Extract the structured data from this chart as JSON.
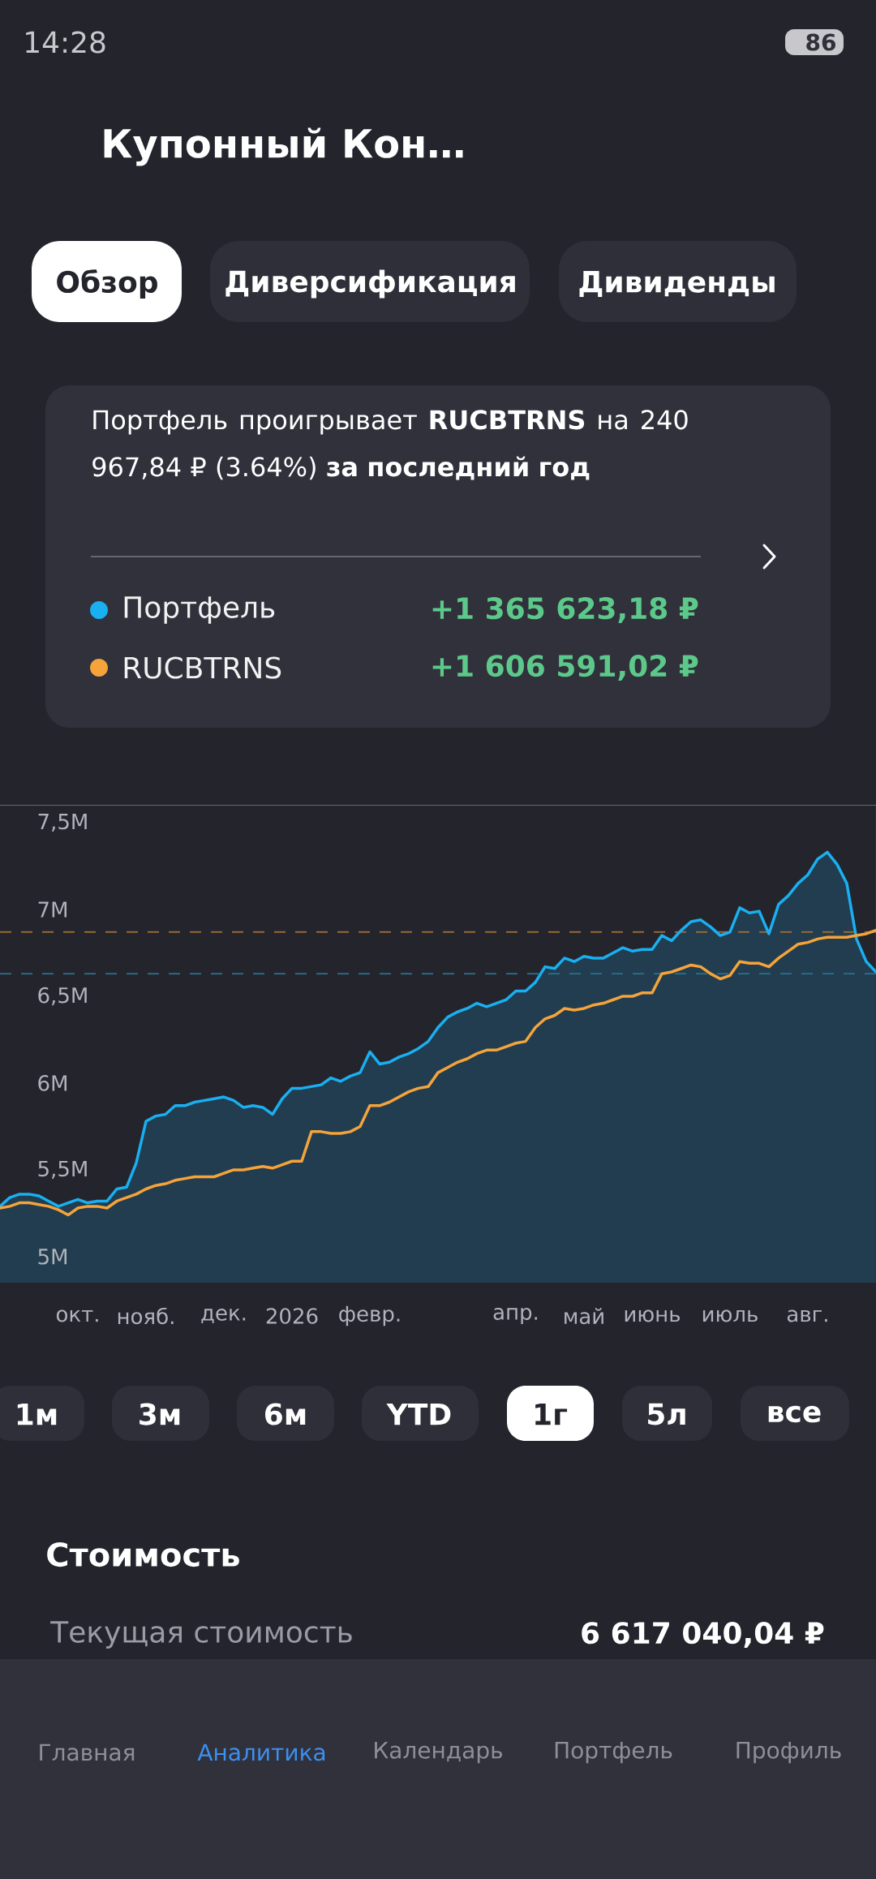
{
  "chart_data": {
    "type": "line",
    "title": "Портфель проигрывает **RUCBTRNS** на 240 967,84 ₽ (3.64%) **за последний год**",
    "categories": [
      null,
      null,
      null,
      null,
      null,
      null,
      null,
      null,
      "окт.",
      null,
      null,
      null,
      null,
      null,
      null,
      "нояб.",
      null,
      null,
      null,
      null,
      null,
      null,
      null,
      "дек.",
      null,
      null,
      null,
      null,
      null,
      null,
      "2026",
      null,
      null,
      null,
      null,
      null,
      null,
      null,
      "февр.",
      null,
      null,
      null,
      null,
      null,
      null,
      null,
      null,
      null,
      null,
      null,
      null,
      null,
      null,
      "апр.",
      null,
      null,
      null,
      null,
      null,
      null,
      "май",
      null,
      null,
      null,
      null,
      null,
      null,
      "июнь",
      null,
      null,
      null,
      null,
      null,
      null,
      null,
      "июль",
      null,
      null,
      null,
      null,
      null,
      null,
      null,
      "авг.",
      null,
      null,
      null,
      null,
      null,
      null,
      null
    ],
    "series": [
      {
        "name": "Портфель",
        "type": "area",
        "color": "#1aaff0",
        "values": [
          5.29,
          5.34,
          5.36,
          5.36,
          5.35,
          5.32,
          5.29,
          5.31,
          5.33,
          5.31,
          5.32,
          5.32,
          5.39,
          5.4,
          5.54,
          5.78,
          5.81,
          5.82,
          5.87,
          5.87,
          5.89,
          5.9,
          5.91,
          5.92,
          5.9,
          5.86,
          5.87,
          5.86,
          5.82,
          5.91,
          5.97,
          5.97,
          5.98,
          5.99,
          6.03,
          6.01,
          6.04,
          6.06,
          6.18,
          6.11,
          6.12,
          6.15,
          6.17,
          6.2,
          6.24,
          6.32,
          6.38,
          6.41,
          6.43,
          6.46,
          6.44,
          6.46,
          6.48,
          6.53,
          6.53,
          6.58,
          6.67,
          6.66,
          6.72,
          6.7,
          6.73,
          6.72,
          6.72,
          6.75,
          6.78,
          6.76,
          6.77,
          6.77,
          6.85,
          6.82,
          6.88,
          6.93,
          6.94,
          6.9,
          6.85,
          6.87,
          7.01,
          6.98,
          6.99,
          6.86,
          7.03,
          7.08,
          7.15,
          7.2,
          7.29,
          7.33,
          7.26,
          7.15,
          6.83,
          6.7,
          6.64
        ]
      },
      {
        "name": "RUCBTRNS",
        "color": "#f5a33b",
        "values": [
          5.28,
          5.29,
          5.31,
          5.31,
          5.3,
          5.29,
          5.27,
          5.24,
          5.28,
          5.29,
          5.29,
          5.28,
          5.32,
          5.34,
          5.36,
          5.39,
          5.41,
          5.42,
          5.44,
          5.45,
          5.46,
          5.46,
          5.46,
          5.48,
          5.5,
          5.5,
          5.51,
          5.52,
          5.51,
          5.53,
          5.55,
          5.55,
          5.72,
          5.72,
          5.71,
          5.71,
          5.72,
          5.75,
          5.87,
          5.87,
          5.89,
          5.92,
          5.95,
          5.97,
          5.98,
          6.06,
          6.09,
          6.12,
          6.14,
          6.17,
          6.19,
          6.19,
          6.21,
          6.23,
          6.24,
          6.32,
          6.37,
          6.39,
          6.43,
          6.42,
          6.43,
          6.45,
          6.46,
          6.48,
          6.5,
          6.5,
          6.52,
          6.52,
          6.63,
          6.64,
          6.66,
          6.68,
          6.67,
          6.63,
          6.6,
          6.62,
          6.7,
          6.69,
          6.69,
          6.67,
          6.72,
          6.76,
          6.8,
          6.81,
          6.83,
          6.84,
          6.84,
          6.84,
          6.85,
          6.86,
          6.88
        ]
      }
    ],
    "ylim": [
      4.85,
      7.6
    ],
    "yticks": [
      {
        "value": 5,
        "label": "5M"
      },
      {
        "value": 5.5,
        "label": "5,5M"
      },
      {
        "value": 6,
        "label": "6M"
      },
      {
        "value": 6.5,
        "label": "6,5M"
      },
      {
        "value": 7,
        "label": "7M"
      },
      {
        "value": 7.5,
        "label": "7,5M"
      }
    ],
    "ref_lines": [
      {
        "axis": "y",
        "value": 6.87,
        "color": "#9a6a3a",
        "line_style": "dashed"
      },
      {
        "axis": "y",
        "value": 6.63,
        "color": "#2d6e8c",
        "line_style": "dashed"
      }
    ],
    "grid": false,
    "legend": "top",
    "annotations": [
      "14:28",
      "86",
      "Купонный Кон…",
      "Обзор",
      "Диверсификация",
      "Дивиденды",
      "+1 365 623,18 ₽",
      "+1 606 591,02 ₽",
      "1м",
      "3м",
      "6м",
      "YTD",
      "1г",
      "5л",
      "все",
      "Стоимость",
      "Текущая стоимость",
      "6 617 040,04 ₽",
      "Главная",
      "Аналитика",
      "Календарь",
      "Портфель",
      "Профиль"
    ]
  }
}
